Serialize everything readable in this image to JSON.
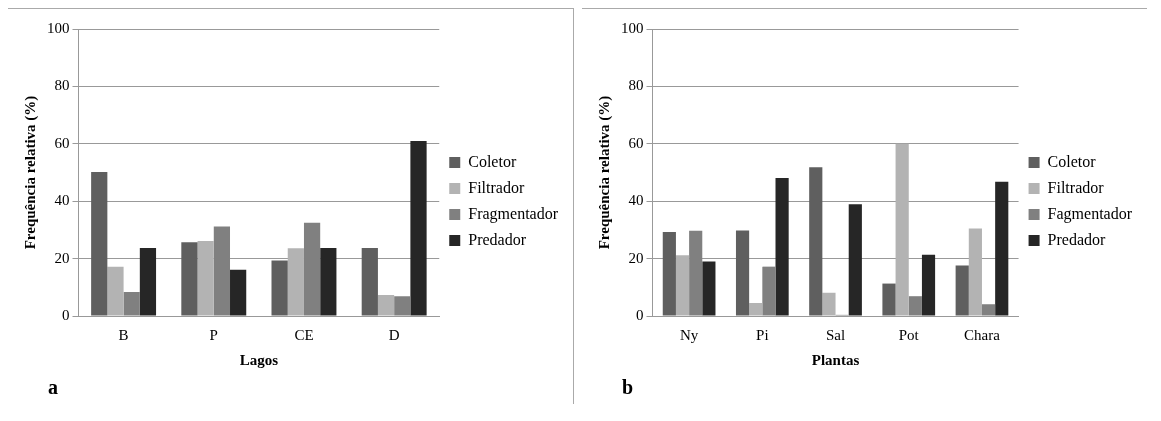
{
  "chart_data": [
    {
      "type": "bar",
      "categories": [
        "B",
        "P",
        "CE",
        "D"
      ],
      "xlabel": "Lagos",
      "ylabel": "Frequência relativa (%)",
      "annotations": [
        "a"
      ],
      "ylim": [
        0,
        100
      ],
      "yticks": [
        0,
        20,
        40,
        60,
        80,
        100
      ],
      "grid": "y",
      "legend": "right",
      "series": [
        {
          "name": "Coletor",
          "color": "#5f5f5f",
          "values": [
            50.2,
            25.7,
            19.3,
            23.7
          ]
        },
        {
          "name": "Filtrador",
          "color": "#b3b3b3",
          "values": [
            17.2,
            26.1,
            23.6,
            7.3
          ]
        },
        {
          "name": "Fragmentador",
          "color": "#808080",
          "values": [
            8.4,
            31.2,
            32.5,
            6.9
          ]
        },
        {
          "name": "Predador",
          "color": "#262626",
          "values": [
            23.7,
            16.1,
            23.7,
            61.0
          ]
        }
      ]
    },
    {
      "type": "bar",
      "categories": [
        "Ny",
        "Pi",
        "Sal",
        "Pot",
        "Chara"
      ],
      "xlabel": "Plantas",
      "ylabel": "Frequência relativa (%)",
      "annotations": [
        "b"
      ],
      "ylim": [
        0,
        100
      ],
      "yticks": [
        0,
        20,
        40,
        60,
        80,
        100
      ],
      "grid": "y",
      "legend": "right",
      "series": [
        {
          "name": "Coletor",
          "color": "#5f5f5f",
          "values": [
            29.3,
            29.8,
            51.8,
            11.3,
            17.6
          ]
        },
        {
          "name": "Filtrador",
          "color": "#b3b3b3",
          "values": [
            21.2,
            4.5,
            8.1,
            60.0,
            30.5
          ]
        },
        {
          "name": "Fagmentador",
          "color": "#808080",
          "values": [
            29.7,
            17.2,
            0.4,
            6.9,
            4.1
          ]
        },
        {
          "name": "Predador",
          "color": "#262626",
          "values": [
            19.0,
            48.1,
            38.9,
            21.3,
            46.8
          ]
        }
      ]
    }
  ]
}
